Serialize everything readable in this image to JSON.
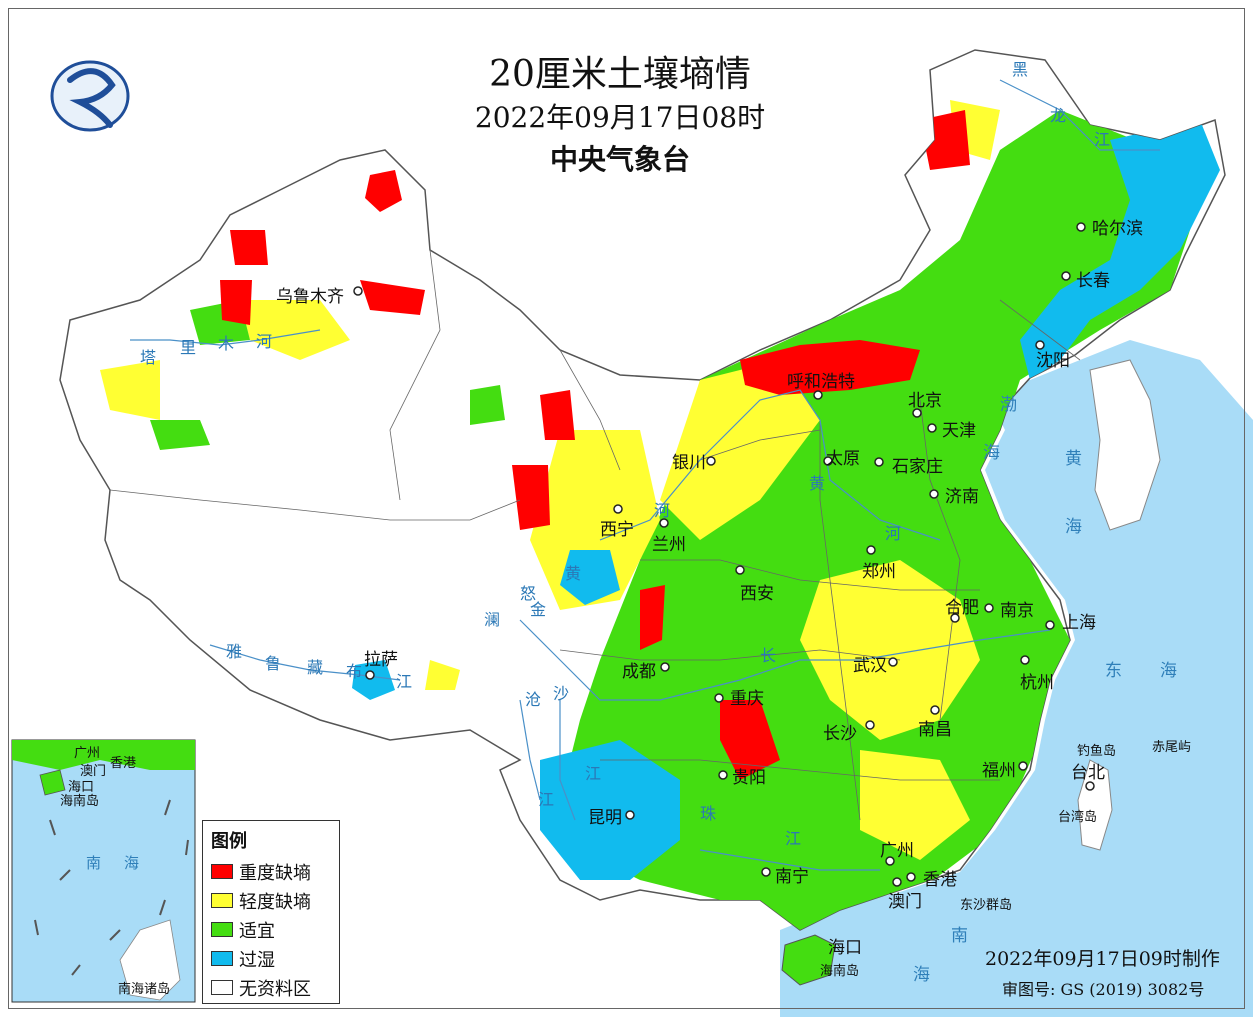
{
  "title": {
    "main": "20厘米土壤墒情",
    "date": "2022年09月17日08时",
    "org": "中央气象台"
  },
  "legend": {
    "title": "图例",
    "items": [
      {
        "label": "重度缺墒",
        "color": "#ff0000"
      },
      {
        "label": "轻度缺墒",
        "color": "#ffff33"
      },
      {
        "label": "适宜",
        "color": "#44dd11"
      },
      {
        "label": "过湿",
        "color": "#11bbee"
      },
      {
        "label": "无资料区",
        "color": "#ffffff"
      }
    ]
  },
  "colors": {
    "sea": "#a9dcf7",
    "land_outside": "#ffffff",
    "no_data": "#ffffff",
    "border": "#555555",
    "river": "#4a90c8"
  },
  "cities": {
    "urumqi": "乌鲁木齐",
    "harbin": "哈尔滨",
    "changchun": "长春",
    "shenyang": "沈阳",
    "hohhot": "呼和浩特",
    "beijing": "北京",
    "tianjin": "天津",
    "yinchuan": "银川",
    "taiyuan": "太原",
    "shijiazhuang": "石家庄",
    "jinan": "济南",
    "xining": "西宁",
    "lanzhou": "兰州",
    "zhengzhou": "郑州",
    "xian": "西安",
    "hefei": "合肥",
    "nanjing": "南京",
    "shanghai": "上海",
    "lhasa": "拉萨",
    "chengdu": "成都",
    "wuhan": "武汉",
    "hangzhou": "杭州",
    "chongqing": "重庆",
    "changsha": "长沙",
    "nanchang": "南昌",
    "guiyang": "贵阳",
    "fuzhou": "福州",
    "taipei": "台北",
    "kunming": "昆明",
    "guangzhou": "广州",
    "nanning": "南宁",
    "hongkong": "香港",
    "macau": "澳门",
    "haikou": "海口"
  },
  "geo_labels": {
    "heilongjiang_1": "黑",
    "heilongjiang_2": "龙",
    "heilongjiang_3": "江",
    "tarim_1": "塔",
    "tarim_2": "里",
    "tarim_3": "木",
    "tarim_4": "河",
    "yellow_river_1": "黄",
    "yellow_river_2": "河",
    "yellow_river_3": "黄",
    "yellow_river_4": "河",
    "yarlung_1": "雅",
    "yarlung_2": "鲁",
    "yarlung_3": "藏",
    "yarlung_4": "布",
    "yarlung_5": "江",
    "lancang_1": "澜",
    "lancang_2": "沧",
    "nu_1": "怒",
    "jinsha_1": "金",
    "jinsha_2": "沙",
    "yangtze_1": "长",
    "yangtze_2": "江",
    "yangtze_3": "江",
    "pearl_1": "珠",
    "pearl_2": "江"
  },
  "seas": {
    "bohai_1": "渤",
    "bohai_2": "海",
    "yellow_sea_1": "黄",
    "yellow_sea_2": "海",
    "east_sea_1": "东",
    "east_sea_2": "海",
    "south_sea_1": "南",
    "south_sea_2": "海"
  },
  "islands": {
    "hainan": "海南岛",
    "taiwan": "台湾岛",
    "diaoyu": "钓鱼岛",
    "chiwei": "赤尾屿",
    "dongsha": "东沙群岛"
  },
  "inset": {
    "guangzhou": "广州",
    "hongkong": "香港",
    "macau": "澳门",
    "haikou": "海口",
    "hainan": "海南岛",
    "south_sea_1": "南",
    "south_sea_2": "海",
    "islands": "南海诸岛"
  },
  "footer": {
    "made": "2022年09月17日09时制作",
    "review": "审图号: GS (2019) 3082号"
  }
}
